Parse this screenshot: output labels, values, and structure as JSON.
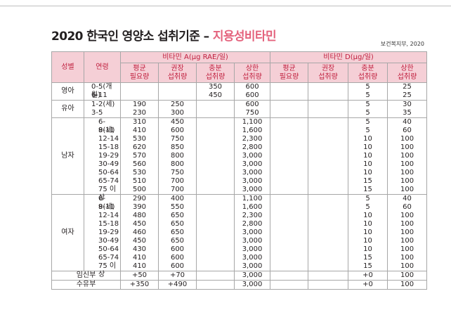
{
  "title_main": "2020 한국인 영양소 섭취기준 – ",
  "title_sub": "지용성비타민",
  "source": "보건복지부, 2020",
  "headers": {
    "gender": "성별",
    "age": "연령",
    "vitA": "비타민 A(μg RAE/일)",
    "vitD": "비타민 D(μg/일)",
    "sub": [
      [
        "평균",
        "필요량"
      ],
      [
        "권장",
        "섭취량"
      ],
      [
        "충분",
        "섭취량"
      ],
      [
        "상한",
        "섭취량"
      ],
      [
        "평균",
        "필요량"
      ],
      [
        "권장",
        "섭취량"
      ],
      [
        "충분",
        "섭취량"
      ],
      [
        "상한",
        "섭취량"
      ]
    ]
  },
  "groups": [
    {
      "name": "영아",
      "rows": [
        {
          "age": "0-5(개월)",
          "a": [
            "",
            "",
            "350",
            "600"
          ],
          "d": [
            "",
            "",
            "5",
            "25"
          ]
        },
        {
          "age": "6-11",
          "a": [
            "",
            "",
            "450",
            "600"
          ],
          "d": [
            "",
            "",
            "5",
            "25"
          ]
        }
      ]
    },
    {
      "name": "유아",
      "rows": [
        {
          "age": "1-2(세)",
          "a": [
            "190",
            "250",
            "",
            "600"
          ],
          "d": [
            "",
            "",
            "5",
            "30"
          ]
        },
        {
          "age": "3-5",
          "a": [
            "230",
            "300",
            "",
            "750"
          ],
          "d": [
            "",
            "",
            "5",
            "35"
          ]
        }
      ]
    },
    {
      "name": "남자",
      "rows": [
        {
          "age": "6-8(세)",
          "a": [
            "310",
            "450",
            "",
            "1,100"
          ],
          "d": [
            "",
            "",
            "5",
            "40"
          ]
        },
        {
          "age": "9-11",
          "a": [
            "410",
            "600",
            "",
            "1,600"
          ],
          "d": [
            "",
            "",
            "5",
            "60"
          ]
        },
        {
          "age": "12-14",
          "a": [
            "530",
            "750",
            "",
            "2,300"
          ],
          "d": [
            "",
            "",
            "10",
            "100"
          ]
        },
        {
          "age": "15-18",
          "a": [
            "620",
            "850",
            "",
            "2,800"
          ],
          "d": [
            "",
            "",
            "10",
            "100"
          ]
        },
        {
          "age": "19-29",
          "a": [
            "570",
            "800",
            "",
            "3,000"
          ],
          "d": [
            "",
            "",
            "10",
            "100"
          ]
        },
        {
          "age": "30-49",
          "a": [
            "560",
            "800",
            "",
            "3,000"
          ],
          "d": [
            "",
            "",
            "10",
            "100"
          ]
        },
        {
          "age": "50-64",
          "a": [
            "530",
            "750",
            "",
            "3,000"
          ],
          "d": [
            "",
            "",
            "10",
            "100"
          ]
        },
        {
          "age": "65-74",
          "a": [
            "510",
            "700",
            "",
            "3,000"
          ],
          "d": [
            "",
            "",
            "15",
            "100"
          ]
        },
        {
          "age": "75 이상",
          "a": [
            "500",
            "700",
            "",
            "3,000"
          ],
          "d": [
            "",
            "",
            "15",
            "100"
          ]
        }
      ]
    },
    {
      "name": "여자",
      "rows": [
        {
          "age": "6-8(세)",
          "a": [
            "290",
            "400",
            "",
            "1,100"
          ],
          "d": [
            "",
            "",
            "5",
            "40"
          ]
        },
        {
          "age": "9-11",
          "a": [
            "390",
            "550",
            "",
            "1,600"
          ],
          "d": [
            "",
            "",
            "5",
            "60"
          ]
        },
        {
          "age": "12-14",
          "a": [
            "480",
            "650",
            "",
            "2,300"
          ],
          "d": [
            "",
            "",
            "10",
            "100"
          ]
        },
        {
          "age": "15-18",
          "a": [
            "450",
            "650",
            "",
            "2,800"
          ],
          "d": [
            "",
            "",
            "10",
            "100"
          ]
        },
        {
          "age": "19-29",
          "a": [
            "460",
            "650",
            "",
            "3,000"
          ],
          "d": [
            "",
            "",
            "10",
            "100"
          ]
        },
        {
          "age": "30-49",
          "a": [
            "450",
            "650",
            "",
            "3,000"
          ],
          "d": [
            "",
            "",
            "10",
            "100"
          ]
        },
        {
          "age": "50-64",
          "a": [
            "430",
            "600",
            "",
            "3,000"
          ],
          "d": [
            "",
            "",
            "10",
            "100"
          ]
        },
        {
          "age": "65-74",
          "a": [
            "410",
            "600",
            "",
            "3,000"
          ],
          "d": [
            "",
            "",
            "15",
            "100"
          ]
        },
        {
          "age": "75 이상",
          "a": [
            "410",
            "600",
            "",
            "3,000"
          ],
          "d": [
            "",
            "",
            "15",
            "100"
          ]
        }
      ]
    }
  ],
  "special": [
    {
      "name": "임신부",
      "a": [
        "+50",
        "+70",
        "",
        "3,000"
      ],
      "d": [
        "",
        "",
        "+0",
        "100"
      ]
    },
    {
      "name": "수유부",
      "a": [
        "+350",
        "+490",
        "",
        "3,000"
      ],
      "d": [
        "",
        "",
        "+0",
        "100"
      ]
    }
  ],
  "colors": {
    "header_bg": "#f5cfd6",
    "header_text": "#c0203f",
    "title_accent": "#e4637d"
  }
}
